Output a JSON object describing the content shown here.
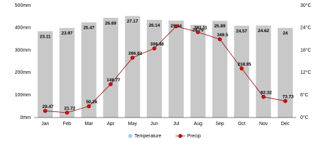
{
  "chart_data": {
    "type": "bar-line",
    "categories": [
      "Jan",
      "Feb",
      "Mar",
      "Apr",
      "May",
      "Jun",
      "Jul",
      "Aug",
      "Sep",
      "Oct",
      "Nov",
      "Dec"
    ],
    "series": [
      {
        "name": "Temperature",
        "color": "#a9c9ea",
        "bar_color": "#c8c8c8",
        "axis": "y2",
        "values": [
          23.11,
          23.97,
          25.47,
          26.69,
          27.17,
          26.14,
          25.94,
          24.79,
          25.89,
          24.57,
          24.62,
          24
        ]
      },
      {
        "name": "Precip",
        "color": "#cc1111",
        "line_color": "#8b0000",
        "values": [
          29.47,
          21.72,
          50.26,
          148.77,
          266.82,
          308.48,
          407,
          381.11,
          349.5,
          218.95,
          92.32,
          73.73
        ],
        "value_labels": [
          "29.47",
          "21.72",
          "50.26",
          "148.77",
          "266.82",
          "308.48",
          null,
          "381.11",
          "349.5",
          "218.95",
          "92.32",
          "73.73"
        ]
      }
    ],
    "ylim": [
      0,
      500
    ],
    "yticks": [
      {
        "value": 0,
        "label": "0mm"
      },
      {
        "value": 100,
        "label": "100mm"
      },
      {
        "value": 200,
        "label": "200mm"
      },
      {
        "value": 300,
        "label": "300mm"
      },
      {
        "value": 400,
        "label": "400mm"
      },
      {
        "value": 500,
        "label": "500mm"
      }
    ],
    "y2lim": [
      0,
      30
    ],
    "y2ticks": [
      {
        "value": 0,
        "label": "0°C"
      },
      {
        "value": 6,
        "label": "6°C"
      },
      {
        "value": 12,
        "label": "12°C"
      },
      {
        "value": 18,
        "label": "18°C"
      },
      {
        "value": 24,
        "label": "24°C"
      },
      {
        "value": 30,
        "label": "30°C"
      }
    ]
  }
}
